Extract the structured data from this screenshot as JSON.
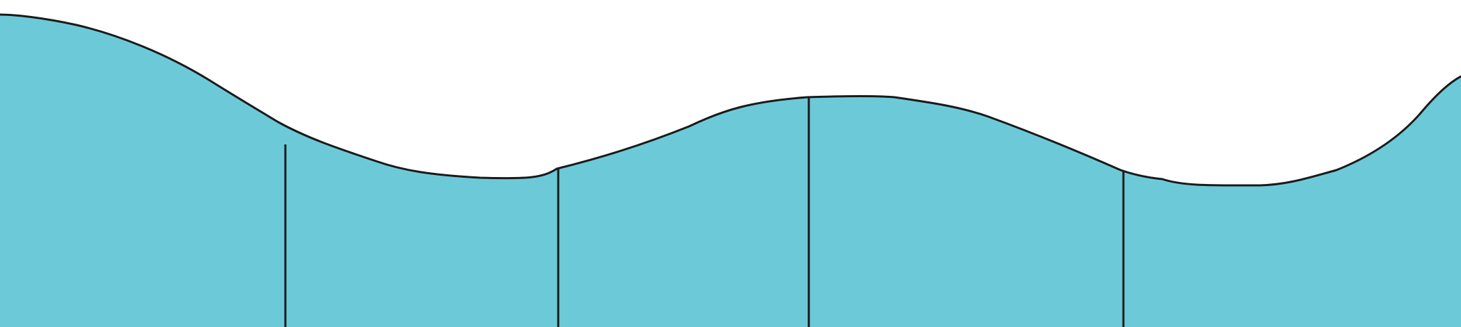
{
  "colors": {
    "background": "#ffffff",
    "fill": "#6ccad8",
    "stroke": "#1a1a1a"
  },
  "segment_count": 5
}
